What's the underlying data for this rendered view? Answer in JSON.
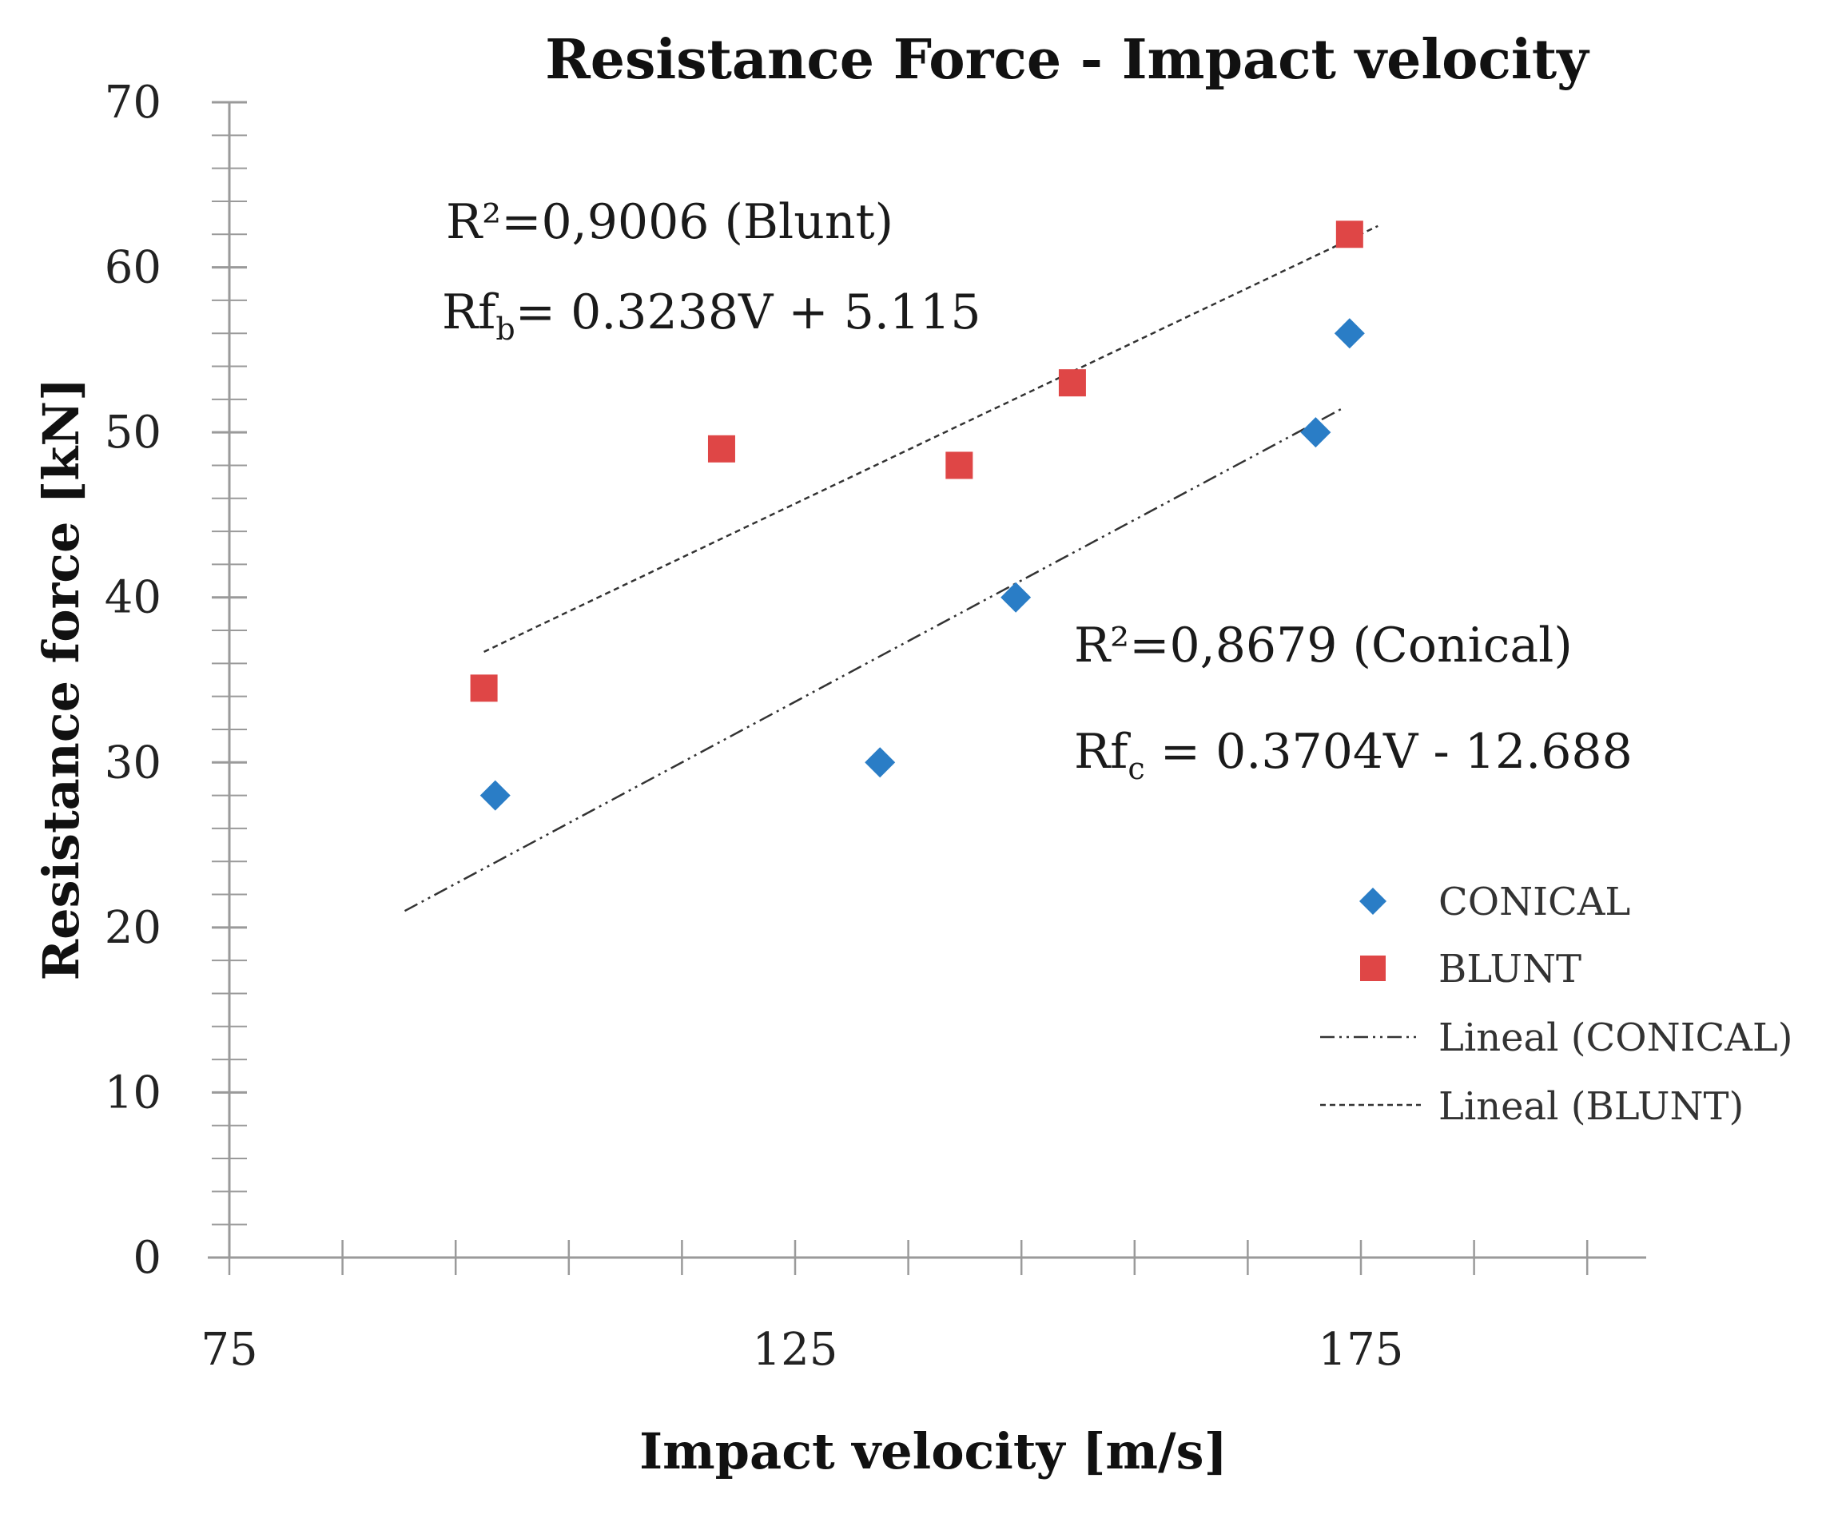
{
  "chart_data": {
    "type": "scatter",
    "title": "Resistance Force - Impact velocity",
    "xlabel": "Impact velocity [m/s]",
    "ylabel": "Resistance force [kN]",
    "xlim": [
      75,
      197
    ],
    "ylim": [
      0,
      70
    ],
    "x_ticks": [
      75,
      125,
      175
    ],
    "y_ticks": [
      0,
      10,
      20,
      30,
      40,
      50,
      60,
      70
    ],
    "x_tick_labels": [
      "75",
      "125",
      "175"
    ],
    "y_tick_labels": [
      "0",
      "10",
      "20",
      "30",
      "40",
      "50",
      "60",
      "70"
    ],
    "grid": false,
    "legend_position": "right",
    "series": [
      {
        "name": "CONICAL",
        "marker": "diamond",
        "color": "#2a7dc6",
        "points": [
          {
            "x": 98.5,
            "y": 28
          },
          {
            "x": 132.5,
            "y": 30
          },
          {
            "x": 144.5,
            "y": 40
          },
          {
            "x": 171,
            "y": 50
          },
          {
            "x": 174,
            "y": 56
          }
        ]
      },
      {
        "name": "BLUNT",
        "marker": "square",
        "color": "#df4646",
        "points": [
          {
            "x": 97.5,
            "y": 34.5
          },
          {
            "x": 118.5,
            "y": 49
          },
          {
            "x": 139.5,
            "y": 48
          },
          {
            "x": 149.5,
            "y": 53
          },
          {
            "x": 174,
            "y": 62
          }
        ]
      }
    ],
    "trendlines": [
      {
        "name": "Lineal (CONICAL)",
        "of": "CONICAL",
        "style": "dash-dot-dot",
        "x_range": [
          90.5,
          173.5
        ],
        "y_range": [
          21,
          51.5
        ]
      },
      {
        "name": "Lineal (BLUNT)",
        "of": "BLUNT",
        "style": "dashed",
        "x_range": [
          97.5,
          176.5
        ],
        "y_range": [
          36.7,
          62.5
        ]
      }
    ],
    "annotations": {
      "blunt_r2": "R²=0,9006 (Blunt)",
      "blunt_eq_prefix": "Rf",
      "blunt_eq_sub": "b",
      "blunt_eq_rest": "= 0.3238V + 5.115",
      "conical_r2": "R²=0,8679 (Conical)",
      "conical_eq_prefix": "Rf",
      "conical_eq_sub": "c",
      "conical_eq_rest": " = 0.3704V - 12.688"
    },
    "legend": [
      {
        "label": "CONICAL",
        "kind": "diamond"
      },
      {
        "label": "BLUNT",
        "kind": "square"
      },
      {
        "label": "Lineal (CONICAL)",
        "kind": "dash-dot-dot"
      },
      {
        "label": "Lineal (BLUNT)",
        "kind": "dashed"
      }
    ]
  }
}
